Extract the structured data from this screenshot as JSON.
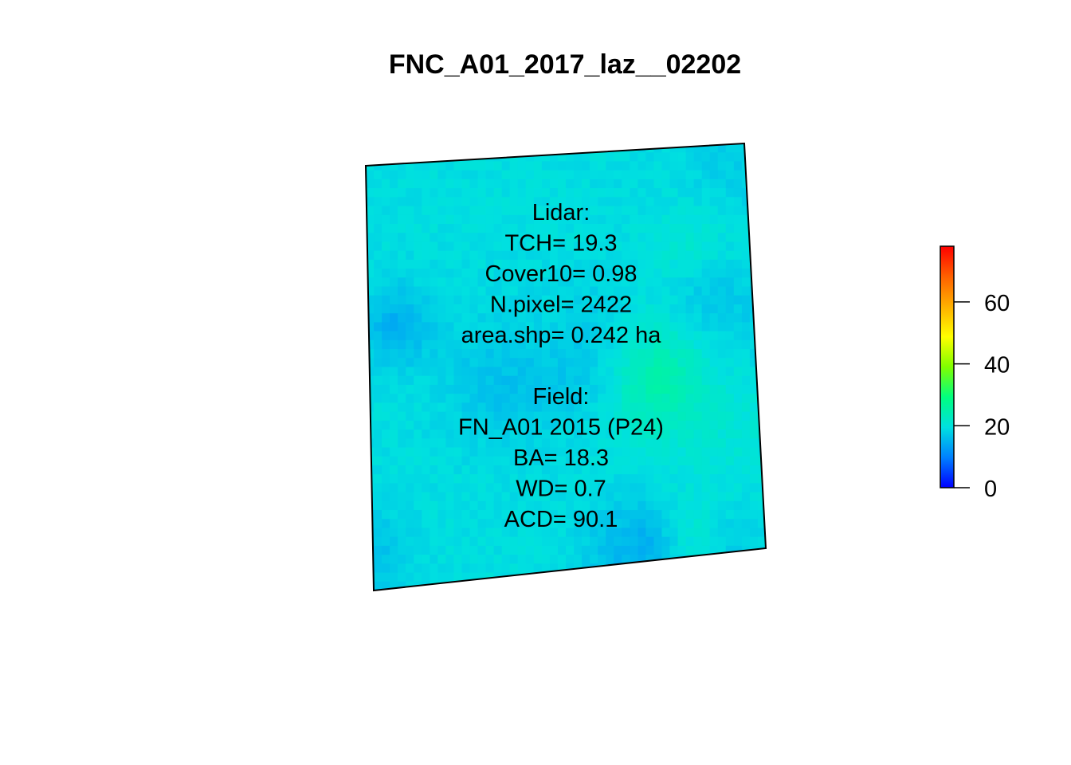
{
  "chart_data": {
    "type": "heatmap",
    "title": "FNC_A01_2017_laz__02202",
    "xlabel": "",
    "ylabel": "",
    "annotations": [
      "Lidar:",
      "TCH= 19.3",
      "Cover10= 0.98",
      "N.pixel= 2422",
      "area.shp= 0.242 ha",
      "",
      "Field:",
      "FN_A01 2015 (P24)",
      "BA= 18.3",
      "WD= 0.7",
      "ACD= 90.1"
    ],
    "colorbar": {
      "min": 0,
      "max": 78,
      "ticks": [
        0,
        20,
        40,
        60
      ],
      "tick_labels": [
        "0",
        "20",
        "40",
        "60"
      ],
      "palette": [
        "#0000ff",
        "#0080ff",
        "#00e0e0",
        "#00ff80",
        "#80ff00",
        "#ffff00",
        "#ffb000",
        "#ff6000",
        "#ff0000"
      ]
    },
    "canopy_height_grid": {
      "value_range": [
        4,
        27
      ],
      "mean": 19.3,
      "rows": 50,
      "cols": 50
    },
    "grid": false
  }
}
